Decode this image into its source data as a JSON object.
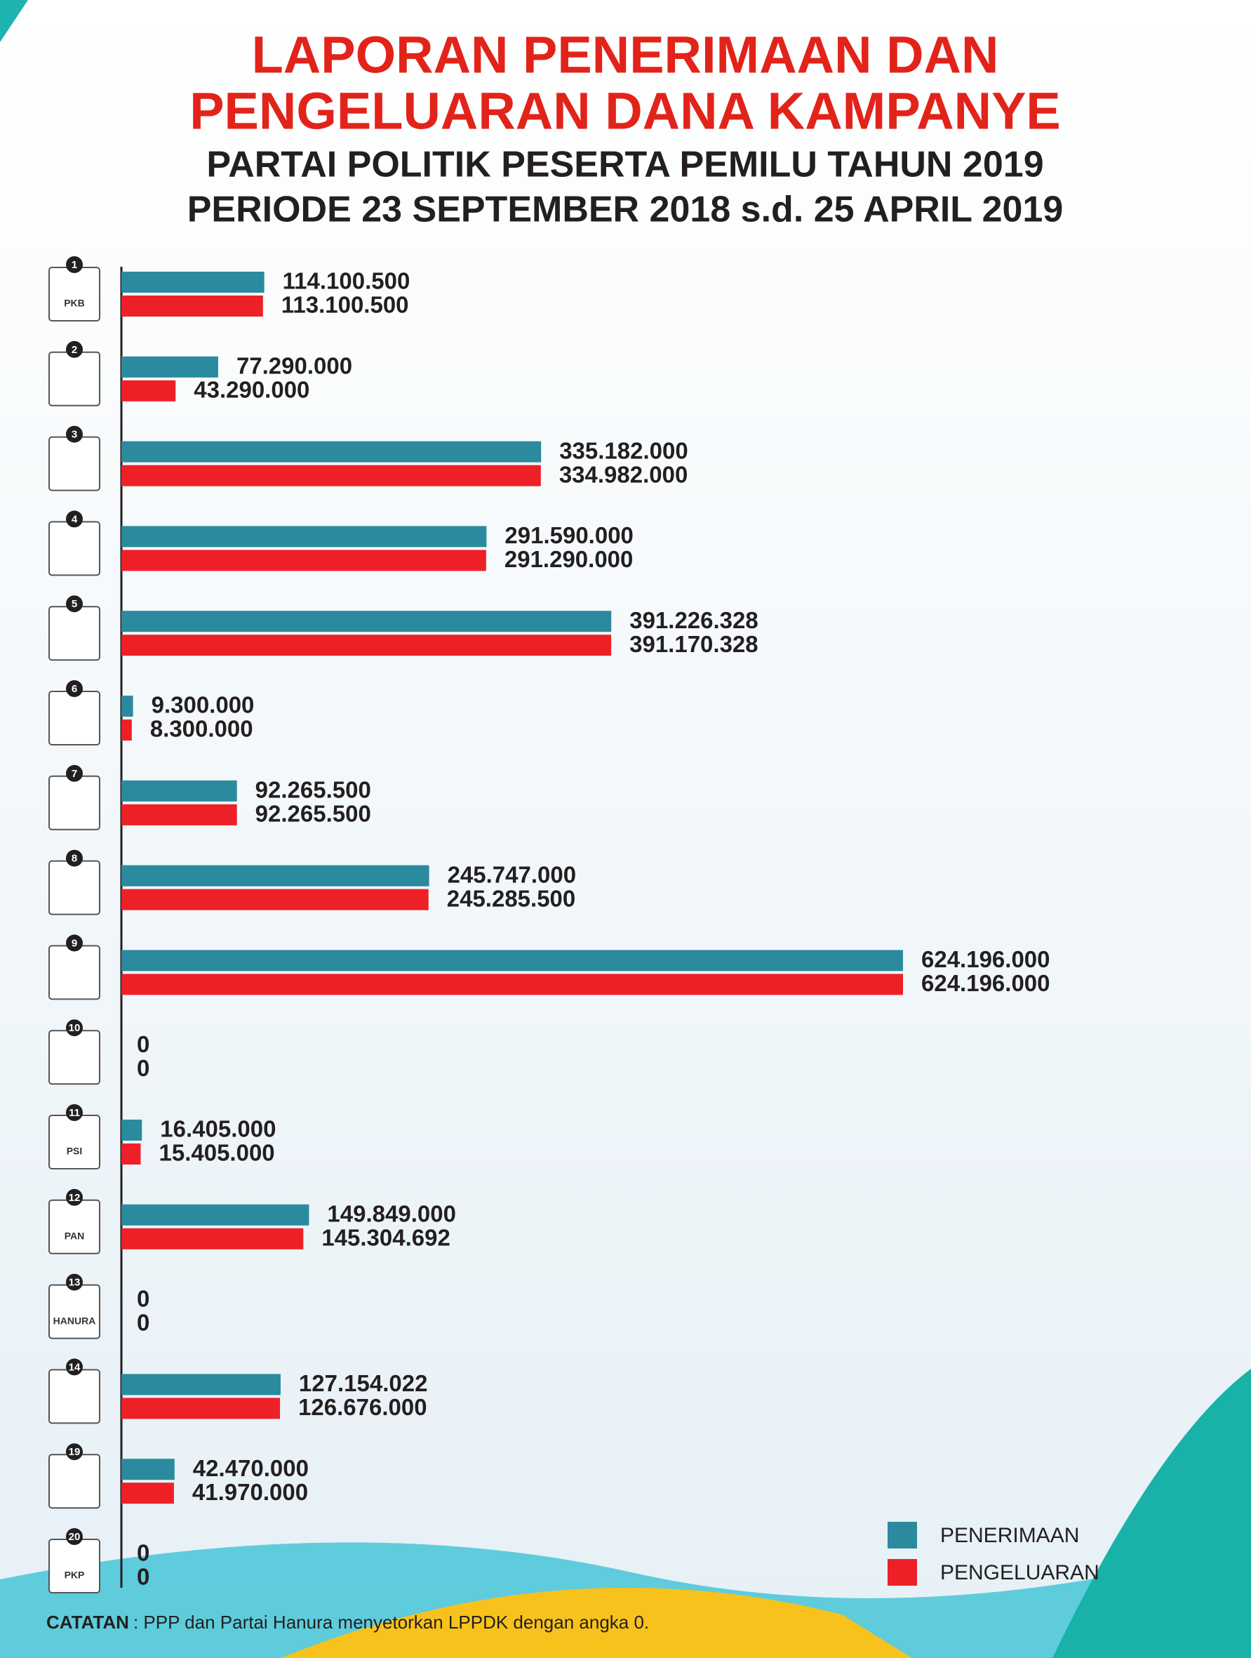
{
  "chart_data": {
    "type": "bar",
    "orientation": "horizontal",
    "title": [
      "LAPORAN PENERIMAAN DAN",
      "PENGELUARAN DANA KAMPANYE"
    ],
    "subtitle": [
      "PARTAI POLITIK PESERTA PEMILU TAHUN 2019",
      "PERIODE 23 SEPTEMBER 2018 s.d. 25 APRIL 2019"
    ],
    "categories": [
      "1",
      "2",
      "3",
      "4",
      "5",
      "6",
      "7",
      "8",
      "9",
      "10",
      "11",
      "12",
      "13",
      "14",
      "19",
      "20"
    ],
    "logo_labels": [
      "PKB",
      null,
      null,
      null,
      null,
      null,
      null,
      null,
      null,
      null,
      "PSI",
      "PAN",
      "HANURA",
      null,
      null,
      "PKP"
    ],
    "series": [
      {
        "name": "PENERIMAAN",
        "color": "#2b8a9d",
        "values": [
          114100500,
          77290000,
          335182000,
          291590000,
          391226328,
          9300000,
          92265500,
          245747000,
          624196000,
          0,
          16405000,
          149849000,
          0,
          127154022,
          42470000,
          0
        ],
        "value_labels": [
          "114.100.500",
          "77.290.000",
          "335.182.000",
          "291.590.000",
          "391.226.328",
          "9.300.000",
          "92.265.500",
          "245.747.000",
          "624.196.000",
          "0",
          "16.405.000",
          "149.849.000",
          "0",
          "127.154.022",
          "42.470.000",
          "0"
        ]
      },
      {
        "name": "PENGELUARAN",
        "color": "#ee2027",
        "values": [
          113100500,
          43290000,
          334982000,
          291290000,
          391170328,
          8300000,
          92265500,
          245285500,
          624196000,
          0,
          15405000,
          145304692,
          0,
          126676000,
          41970000,
          0
        ],
        "value_labels": [
          "113.100.500",
          "43.290.000",
          "334.982.000",
          "291.290.000",
          "391.170.328",
          "8.300.000",
          "92.265.500",
          "245.285.500",
          "624.196.000",
          "0",
          "15.405.000",
          "145.304.692",
          "0",
          "126.676.000",
          "41.970.000",
          "0"
        ]
      }
    ],
    "note": {
      "label": "CATATAN",
      "text": ": PPP dan Partai Hanura menyetorkan LPPDK dengan angka 0."
    }
  }
}
